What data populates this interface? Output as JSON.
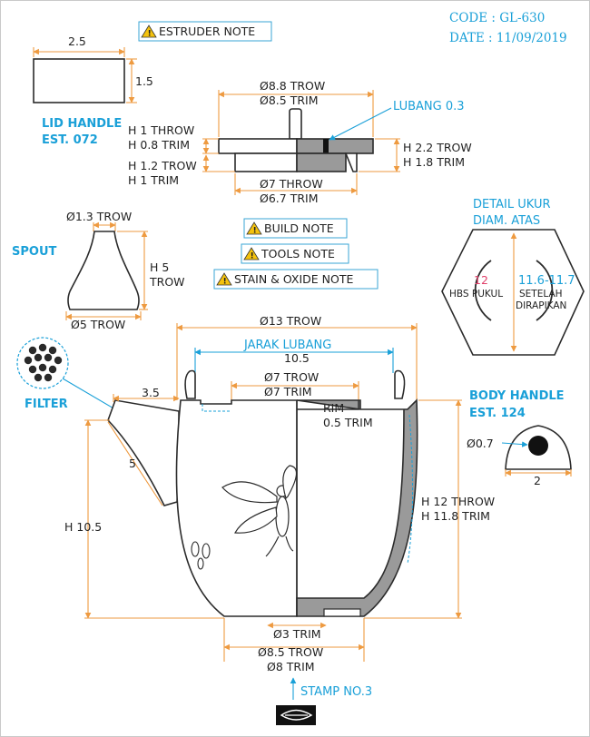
{
  "header": {
    "code": "CODE : GL-630",
    "date": "DATE : 11/09/2019"
  },
  "notes": {
    "estruder": "ESTRUDER NOTE",
    "build": "BUILD NOTE",
    "tools": "TOOLS NOTE",
    "stain": "STAIN & OXIDE NOTE"
  },
  "lid_handle": {
    "title_line1": "LID HANDLE",
    "title_line2": "EST. 072",
    "width": "2.5",
    "height": "1.5"
  },
  "lid": {
    "top_dia_throw": "Ø8.8 TROW",
    "top_dia_trim": "Ø8.5 TRIM",
    "hole": "LUBANG 0.3",
    "left_h1_throw": "H 1 THROW",
    "left_h1_trim": "H 0.8 TRIM",
    "left_h2_throw": "H 1.2 TROW",
    "left_h2_trim": "H 1 TRIM",
    "right_h_throw": "H 2.2 TROW",
    "right_h_trim": "H 1.8 TRIM",
    "bottom_dia_throw": "Ø7 THROW",
    "bottom_dia_trim": "Ø6.7 TRIM"
  },
  "spout": {
    "title": "SPOUT",
    "top_dia": "Ø1.3 TROW",
    "height_line1": "H 5",
    "height_line2": "TROW",
    "base_dia": "Ø5 TROW"
  },
  "detail": {
    "title_line1": "DETAIL UKUR",
    "title_line2": "DIAM. ATAS",
    "left_value": "12",
    "left_label": "HBS PUKUL",
    "right_value": "11.6-11.7",
    "right_label1": "SETELAH",
    "right_label2": "DIRAPIKAN"
  },
  "filter": {
    "title": "FILTER"
  },
  "body": {
    "dia_throw": "Ø13 TROW",
    "hole_spacing_label": "JARAK LUBANG",
    "hole_spacing": "10.5",
    "inner_dia_throw": "Ø7 TROW",
    "inner_dia_trim": "Ø7 TRIM",
    "rim_label": "RIM",
    "rim_trim": "0.5 TRIM",
    "spout_offset": "3.5",
    "spout_length": "5",
    "height_left": "H 10.5",
    "height_throw": "H 12 THROW",
    "height_trim": "H 11.8 TRIM",
    "foot_inner": "Ø3 TRIM",
    "foot_throw": "Ø8.5 TROW",
    "foot_trim": "Ø8 TRIM",
    "stamp": "STAMP NO.3"
  },
  "body_handle": {
    "title_line1": "BODY HANDLE",
    "title_line2": "EST. 124",
    "hole_dia": "Ø0.7",
    "width": "2"
  }
}
